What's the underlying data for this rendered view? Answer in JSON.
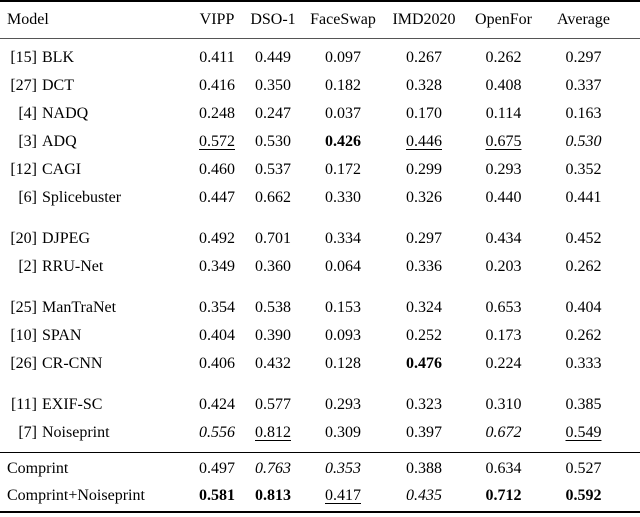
{
  "page": {
    "background_color": "#ffffff",
    "text_color": "#000000",
    "rule_color": "#000000"
  },
  "table": {
    "columns": [
      "Model",
      "VIPP",
      "DSO-1",
      "FaceSwap",
      "IMD2020",
      "OpenFor",
      "Average"
    ],
    "groups": [
      {
        "rows": [
          {
            "ref": "[15]",
            "model": "BLK",
            "values": [
              {
                "text": "0.411",
                "style": "normal"
              },
              {
                "text": "0.449",
                "style": "normal"
              },
              {
                "text": "0.097",
                "style": "normal"
              },
              {
                "text": "0.267",
                "style": "normal"
              },
              {
                "text": "0.262",
                "style": "normal"
              },
              {
                "text": "0.297",
                "style": "normal"
              }
            ]
          },
          {
            "ref": "[27]",
            "model": "DCT",
            "values": [
              {
                "text": "0.416",
                "style": "normal"
              },
              {
                "text": "0.350",
                "style": "normal"
              },
              {
                "text": "0.182",
                "style": "normal"
              },
              {
                "text": "0.328",
                "style": "normal"
              },
              {
                "text": "0.408",
                "style": "normal"
              },
              {
                "text": "0.337",
                "style": "normal"
              }
            ]
          },
          {
            "ref": "[4]",
            "model": "NADQ",
            "values": [
              {
                "text": "0.248",
                "style": "normal"
              },
              {
                "text": "0.247",
                "style": "normal"
              },
              {
                "text": "0.037",
                "style": "normal"
              },
              {
                "text": "0.170",
                "style": "normal"
              },
              {
                "text": "0.114",
                "style": "normal"
              },
              {
                "text": "0.163",
                "style": "normal"
              }
            ]
          },
          {
            "ref": "[3]",
            "model": "ADQ",
            "values": [
              {
                "text": "0.572",
                "style": "underline"
              },
              {
                "text": "0.530",
                "style": "normal"
              },
              {
                "text": "0.426",
                "style": "bold"
              },
              {
                "text": "0.446",
                "style": "underline"
              },
              {
                "text": "0.675",
                "style": "underline"
              },
              {
                "text": "0.530",
                "style": "italic"
              }
            ]
          },
          {
            "ref": "[12]",
            "model": "CAGI",
            "values": [
              {
                "text": "0.460",
                "style": "normal"
              },
              {
                "text": "0.537",
                "style": "normal"
              },
              {
                "text": "0.172",
                "style": "normal"
              },
              {
                "text": "0.299",
                "style": "normal"
              },
              {
                "text": "0.293",
                "style": "normal"
              },
              {
                "text": "0.352",
                "style": "normal"
              }
            ]
          },
          {
            "ref": "[6]",
            "model": "Splicebuster",
            "values": [
              {
                "text": "0.447",
                "style": "normal"
              },
              {
                "text": "0.662",
                "style": "normal"
              },
              {
                "text": "0.330",
                "style": "normal"
              },
              {
                "text": "0.326",
                "style": "normal"
              },
              {
                "text": "0.440",
                "style": "normal"
              },
              {
                "text": "0.441",
                "style": "normal"
              }
            ]
          }
        ]
      },
      {
        "rows": [
          {
            "ref": "[20]",
            "model": "DJPEG",
            "values": [
              {
                "text": "0.492",
                "style": "normal"
              },
              {
                "text": "0.701",
                "style": "normal"
              },
              {
                "text": "0.334",
                "style": "normal"
              },
              {
                "text": "0.297",
                "style": "normal"
              },
              {
                "text": "0.434",
                "style": "normal"
              },
              {
                "text": "0.452",
                "style": "normal"
              }
            ]
          },
          {
            "ref": "[2]",
            "model": "RRU-Net",
            "values": [
              {
                "text": "0.349",
                "style": "normal"
              },
              {
                "text": "0.360",
                "style": "normal"
              },
              {
                "text": "0.064",
                "style": "normal"
              },
              {
                "text": "0.336",
                "style": "normal"
              },
              {
                "text": "0.203",
                "style": "normal"
              },
              {
                "text": "0.262",
                "style": "normal"
              }
            ]
          }
        ]
      },
      {
        "rows": [
          {
            "ref": "[25]",
            "model": "ManTraNet",
            "values": [
              {
                "text": "0.354",
                "style": "normal"
              },
              {
                "text": "0.538",
                "style": "normal"
              },
              {
                "text": "0.153",
                "style": "normal"
              },
              {
                "text": "0.324",
                "style": "normal"
              },
              {
                "text": "0.653",
                "style": "normal"
              },
              {
                "text": "0.404",
                "style": "normal"
              }
            ]
          },
          {
            "ref": "[10]",
            "model": "SPAN",
            "values": [
              {
                "text": "0.404",
                "style": "normal"
              },
              {
                "text": "0.390",
                "style": "normal"
              },
              {
                "text": "0.093",
                "style": "normal"
              },
              {
                "text": "0.252",
                "style": "normal"
              },
              {
                "text": "0.173",
                "style": "normal"
              },
              {
                "text": "0.262",
                "style": "normal"
              }
            ]
          },
          {
            "ref": "[26]",
            "model": "CR-CNN",
            "values": [
              {
                "text": "0.406",
                "style": "normal"
              },
              {
                "text": "0.432",
                "style": "normal"
              },
              {
                "text": "0.128",
                "style": "normal"
              },
              {
                "text": "0.476",
                "style": "bold"
              },
              {
                "text": "0.224",
                "style": "normal"
              },
              {
                "text": "0.333",
                "style": "normal"
              }
            ]
          }
        ]
      },
      {
        "rows": [
          {
            "ref": "[11]",
            "model": "EXIF-SC",
            "values": [
              {
                "text": "0.424",
                "style": "normal"
              },
              {
                "text": "0.577",
                "style": "normal"
              },
              {
                "text": "0.293",
                "style": "normal"
              },
              {
                "text": "0.323",
                "style": "normal"
              },
              {
                "text": "0.310",
                "style": "normal"
              },
              {
                "text": "0.385",
                "style": "normal"
              }
            ]
          },
          {
            "ref": "[7]",
            "model": "Noiseprint",
            "values": [
              {
                "text": "0.556",
                "style": "italic"
              },
              {
                "text": "0.812",
                "style": "underline"
              },
              {
                "text": "0.309",
                "style": "normal"
              },
              {
                "text": "0.397",
                "style": "normal"
              },
              {
                "text": "0.672",
                "style": "italic"
              },
              {
                "text": "0.549",
                "style": "underline"
              }
            ]
          }
        ]
      }
    ],
    "footer_groups": [
      {
        "rows": [
          {
            "ref": "",
            "model": "Comprint",
            "values": [
              {
                "text": "0.497",
                "style": "normal"
              },
              {
                "text": "0.763",
                "style": "italic"
              },
              {
                "text": "0.353",
                "style": "italic"
              },
              {
                "text": "0.388",
                "style": "normal"
              },
              {
                "text": "0.634",
                "style": "normal"
              },
              {
                "text": "0.527",
                "style": "normal"
              }
            ]
          },
          {
            "ref": "",
            "model": "Comprint+Noiseprint",
            "values": [
              {
                "text": "0.581",
                "style": "bold"
              },
              {
                "text": "0.813",
                "style": "bold"
              },
              {
                "text": "0.417",
                "style": "underline"
              },
              {
                "text": "0.435",
                "style": "italic"
              },
              {
                "text": "0.712",
                "style": "bold"
              },
              {
                "text": "0.592",
                "style": "bold"
              }
            ]
          }
        ]
      }
    ],
    "style_legend": {
      "normal": "plain value",
      "bold": "best score",
      "underline": "second marker",
      "italic": "third marker"
    }
  }
}
